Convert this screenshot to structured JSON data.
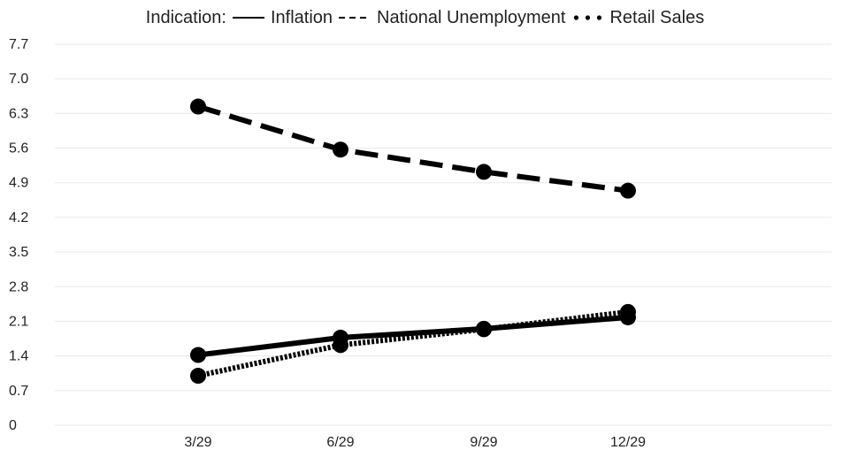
{
  "chart_data": {
    "type": "line",
    "legend": {
      "title": "Indication:",
      "placement": "top"
    },
    "categories": [
      "3/29",
      "6/29",
      "9/29",
      "12/29"
    ],
    "series": [
      {
        "name": "Inflation",
        "style": "solid",
        "values": [
          1.42,
          1.77,
          1.95,
          2.18
        ]
      },
      {
        "name": "National Unemployment",
        "style": "dashed",
        "values": [
          6.44,
          5.57,
          5.12,
          4.74
        ]
      },
      {
        "name": "Retail Sales",
        "style": "dotted",
        "values": [
          1.0,
          1.62,
          1.94,
          2.29
        ]
      }
    ],
    "yticks": [
      "0",
      "0.7",
      "1.4",
      "2.1",
      "2.8",
      "3.5",
      "4.2",
      "4.9",
      "5.6",
      "6.3",
      "7.0",
      "7.7"
    ],
    "ylim": [
      0,
      7.7
    ],
    "grid": true,
    "line_color": "#000000",
    "grid_color": "#e9e9e9"
  }
}
